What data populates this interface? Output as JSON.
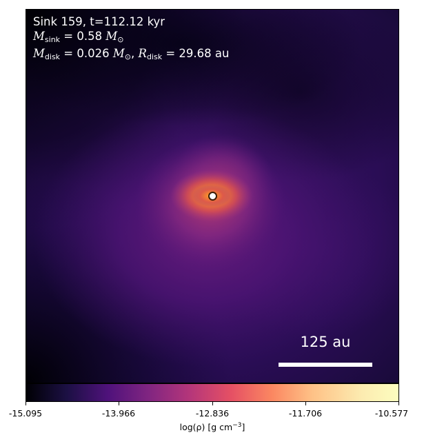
{
  "image": {
    "title": "Sink 159, t=112.12 kyr",
    "sink_mass": {
      "symbol": "M",
      "subscript": "sink",
      "value": "0.58",
      "unit": "M",
      "unit_subscript": "⊙"
    },
    "disk_mass": {
      "symbol": "M",
      "subscript": "disk",
      "value": "0.026",
      "unit": "M",
      "unit_subscript": "⊙"
    },
    "disk_radius": {
      "symbol": "R",
      "subscript": "disk",
      "value": "29.68",
      "unit": "au"
    },
    "scale_bar_label": "125 au",
    "colormap": "inferno",
    "colors": {
      "background_dark": "#000004",
      "disk_glow": "#f07a2a",
      "envelope": "#4a1673"
    }
  },
  "colorbar": {
    "ticks": [
      "-15.095",
      "-13.966",
      "-12.836",
      "-11.706",
      "-10.577"
    ],
    "label": "log(ρ) [g cm",
    "label_exp": "−3",
    "label_suffix": "]"
  }
}
